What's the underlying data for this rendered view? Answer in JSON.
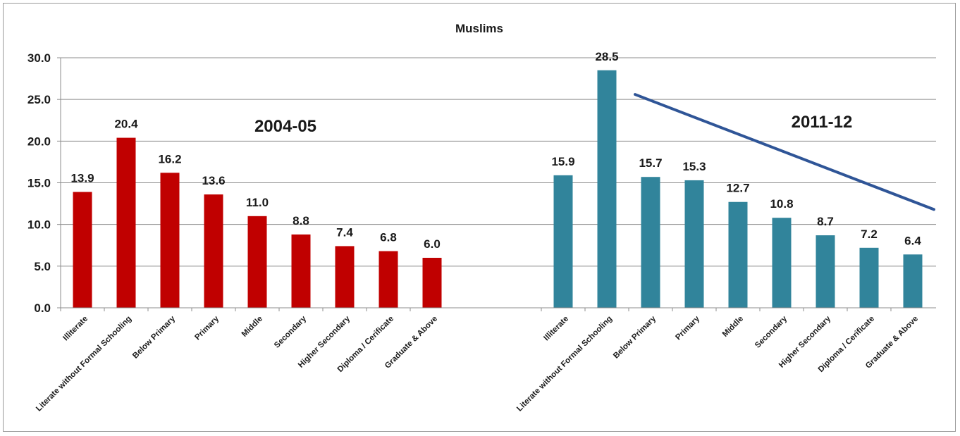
{
  "chart_data": {
    "type": "bar",
    "title": "Muslims",
    "xlabel": "",
    "ylabel": "",
    "ylim": [
      0,
      30
    ],
    "yticks": [
      "0.0",
      "5.0",
      "10.0",
      "15.0",
      "20.0",
      "25.0",
      "30.0"
    ],
    "grid": true,
    "groups": [
      {
        "label": "2004-05",
        "color": "#c00000",
        "categories": [
          "Illiterate",
          "Literate without Formal Schooling",
          "Below Primary",
          "Primary",
          "Middle",
          "Secondary",
          "Higher Secondary",
          "Diploma / Cerificate",
          "Graduate & Above"
        ],
        "values": [
          13.9,
          20.4,
          16.2,
          13.6,
          11.0,
          8.8,
          7.4,
          6.8,
          6.0
        ],
        "value_labels": [
          "13.9",
          "20.4",
          "16.2",
          "13.6",
          "11.0",
          "8.8",
          "7.4",
          "6.8",
          "6.0"
        ]
      },
      {
        "label": "2011-12",
        "color": "#31849b",
        "categories": [
          "Illiterate",
          "Literate without Formal Schooling",
          "Below Primary",
          "Primary",
          "Middle",
          "Secondary",
          "Higher Secondary",
          "Diploma / Cerificate",
          "Graduate & Above"
        ],
        "values": [
          15.9,
          28.5,
          15.7,
          15.3,
          12.7,
          10.8,
          8.7,
          7.2,
          6.4
        ],
        "value_labels": [
          "15.9",
          "28.5",
          "15.7",
          "15.3",
          "12.7",
          "10.8",
          "8.7",
          "7.2",
          "6.4"
        ]
      }
    ],
    "trend_line": {
      "color": "#2f5597",
      "group": "2011-12",
      "from_category": "Below Primary",
      "to_category": "Graduate & Above",
      "from_value": 25.6,
      "to_value": 11.8
    }
  }
}
